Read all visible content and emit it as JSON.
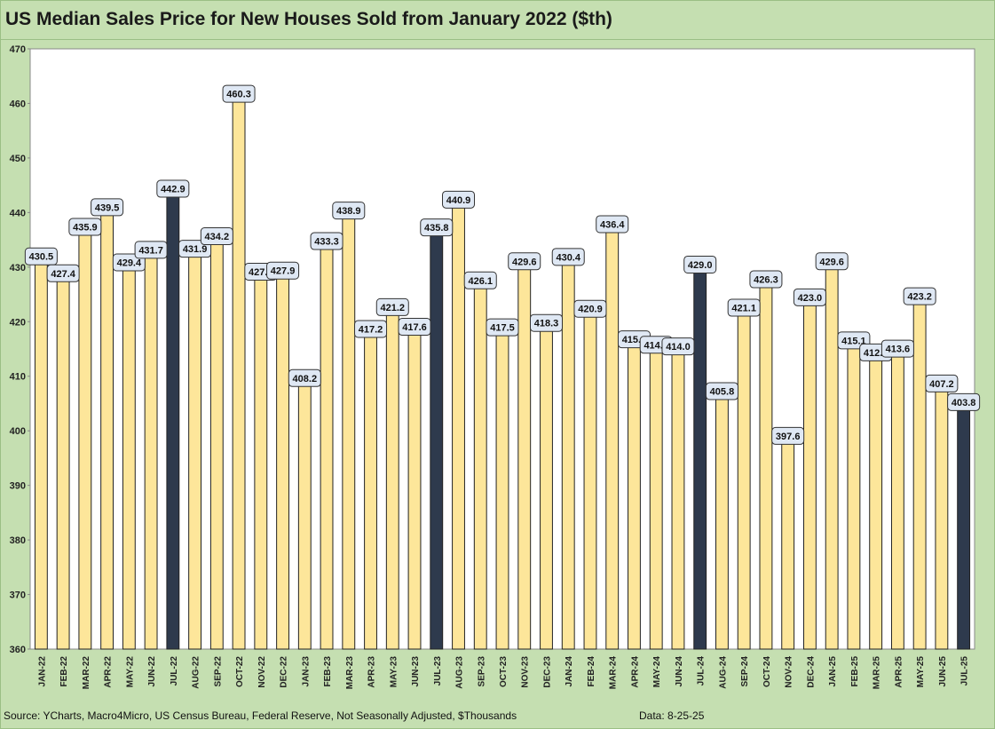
{
  "chart_data": {
    "type": "bar",
    "title": "US Median Sales Price for New Houses Sold from January 2022 ($th)",
    "xlabel": "",
    "ylabel": "",
    "ylim": [
      360,
      470
    ],
    "yticks": [
      360,
      370,
      380,
      390,
      400,
      410,
      420,
      430,
      440,
      450,
      460,
      470
    ],
    "grid": false,
    "colors": {
      "default": "#fde69a",
      "highlight": "#2e3a4d",
      "border": "#222222",
      "plot_bg": "#ffffff",
      "label_bg": "#dfe8f4"
    },
    "categories": [
      "JAN-22",
      "FEB-22",
      "MAR-22",
      "APR-22",
      "MAY-22",
      "JUN-22",
      "JUL-22",
      "AUG-22",
      "SEP-22",
      "OCT-22",
      "NOV-22",
      "DEC-22",
      "JAN-23",
      "FEB-23",
      "MAR-23",
      "APR-23",
      "MAY-23",
      "JUN-23",
      "JUL-23",
      "AUG-23",
      "SEP-23",
      "OCT-23",
      "NOV-23",
      "DEC-23",
      "JAN-24",
      "FEB-24",
      "MAR-24",
      "APR-24",
      "MAY-24",
      "JUN-24",
      "JUL-24",
      "AUG-24",
      "SEP-24",
      "OCT-24",
      "NOV-24",
      "DEC-24",
      "JAN-25",
      "FEB-25",
      "MAR-25",
      "APR-25",
      "MAY-25",
      "JUN-25",
      "JUL-25"
    ],
    "values": [
      430.5,
      427.4,
      435.9,
      439.5,
      429.4,
      431.7,
      442.9,
      431.9,
      434.2,
      460.3,
      427.7,
      427.9,
      408.2,
      433.3,
      438.9,
      417.2,
      421.2,
      417.6,
      435.8,
      440.9,
      426.1,
      417.5,
      429.6,
      418.3,
      430.4,
      420.9,
      436.4,
      415.3,
      414.3,
      414.0,
      429.0,
      405.8,
      421.1,
      426.3,
      397.6,
      423.0,
      429.6,
      415.1,
      412.9,
      413.6,
      423.2,
      407.2,
      403.8
    ],
    "highlighted": [
      "JUL-22",
      "JUL-23",
      "JUL-24",
      "JUL-25"
    ]
  },
  "footer": {
    "source": "Source: YCharts, Macro4Micro, US Census Bureau, Federal Reserve, Not Seasonally Adjusted, $Thousands",
    "data_date": "Data: 8-25-25"
  }
}
